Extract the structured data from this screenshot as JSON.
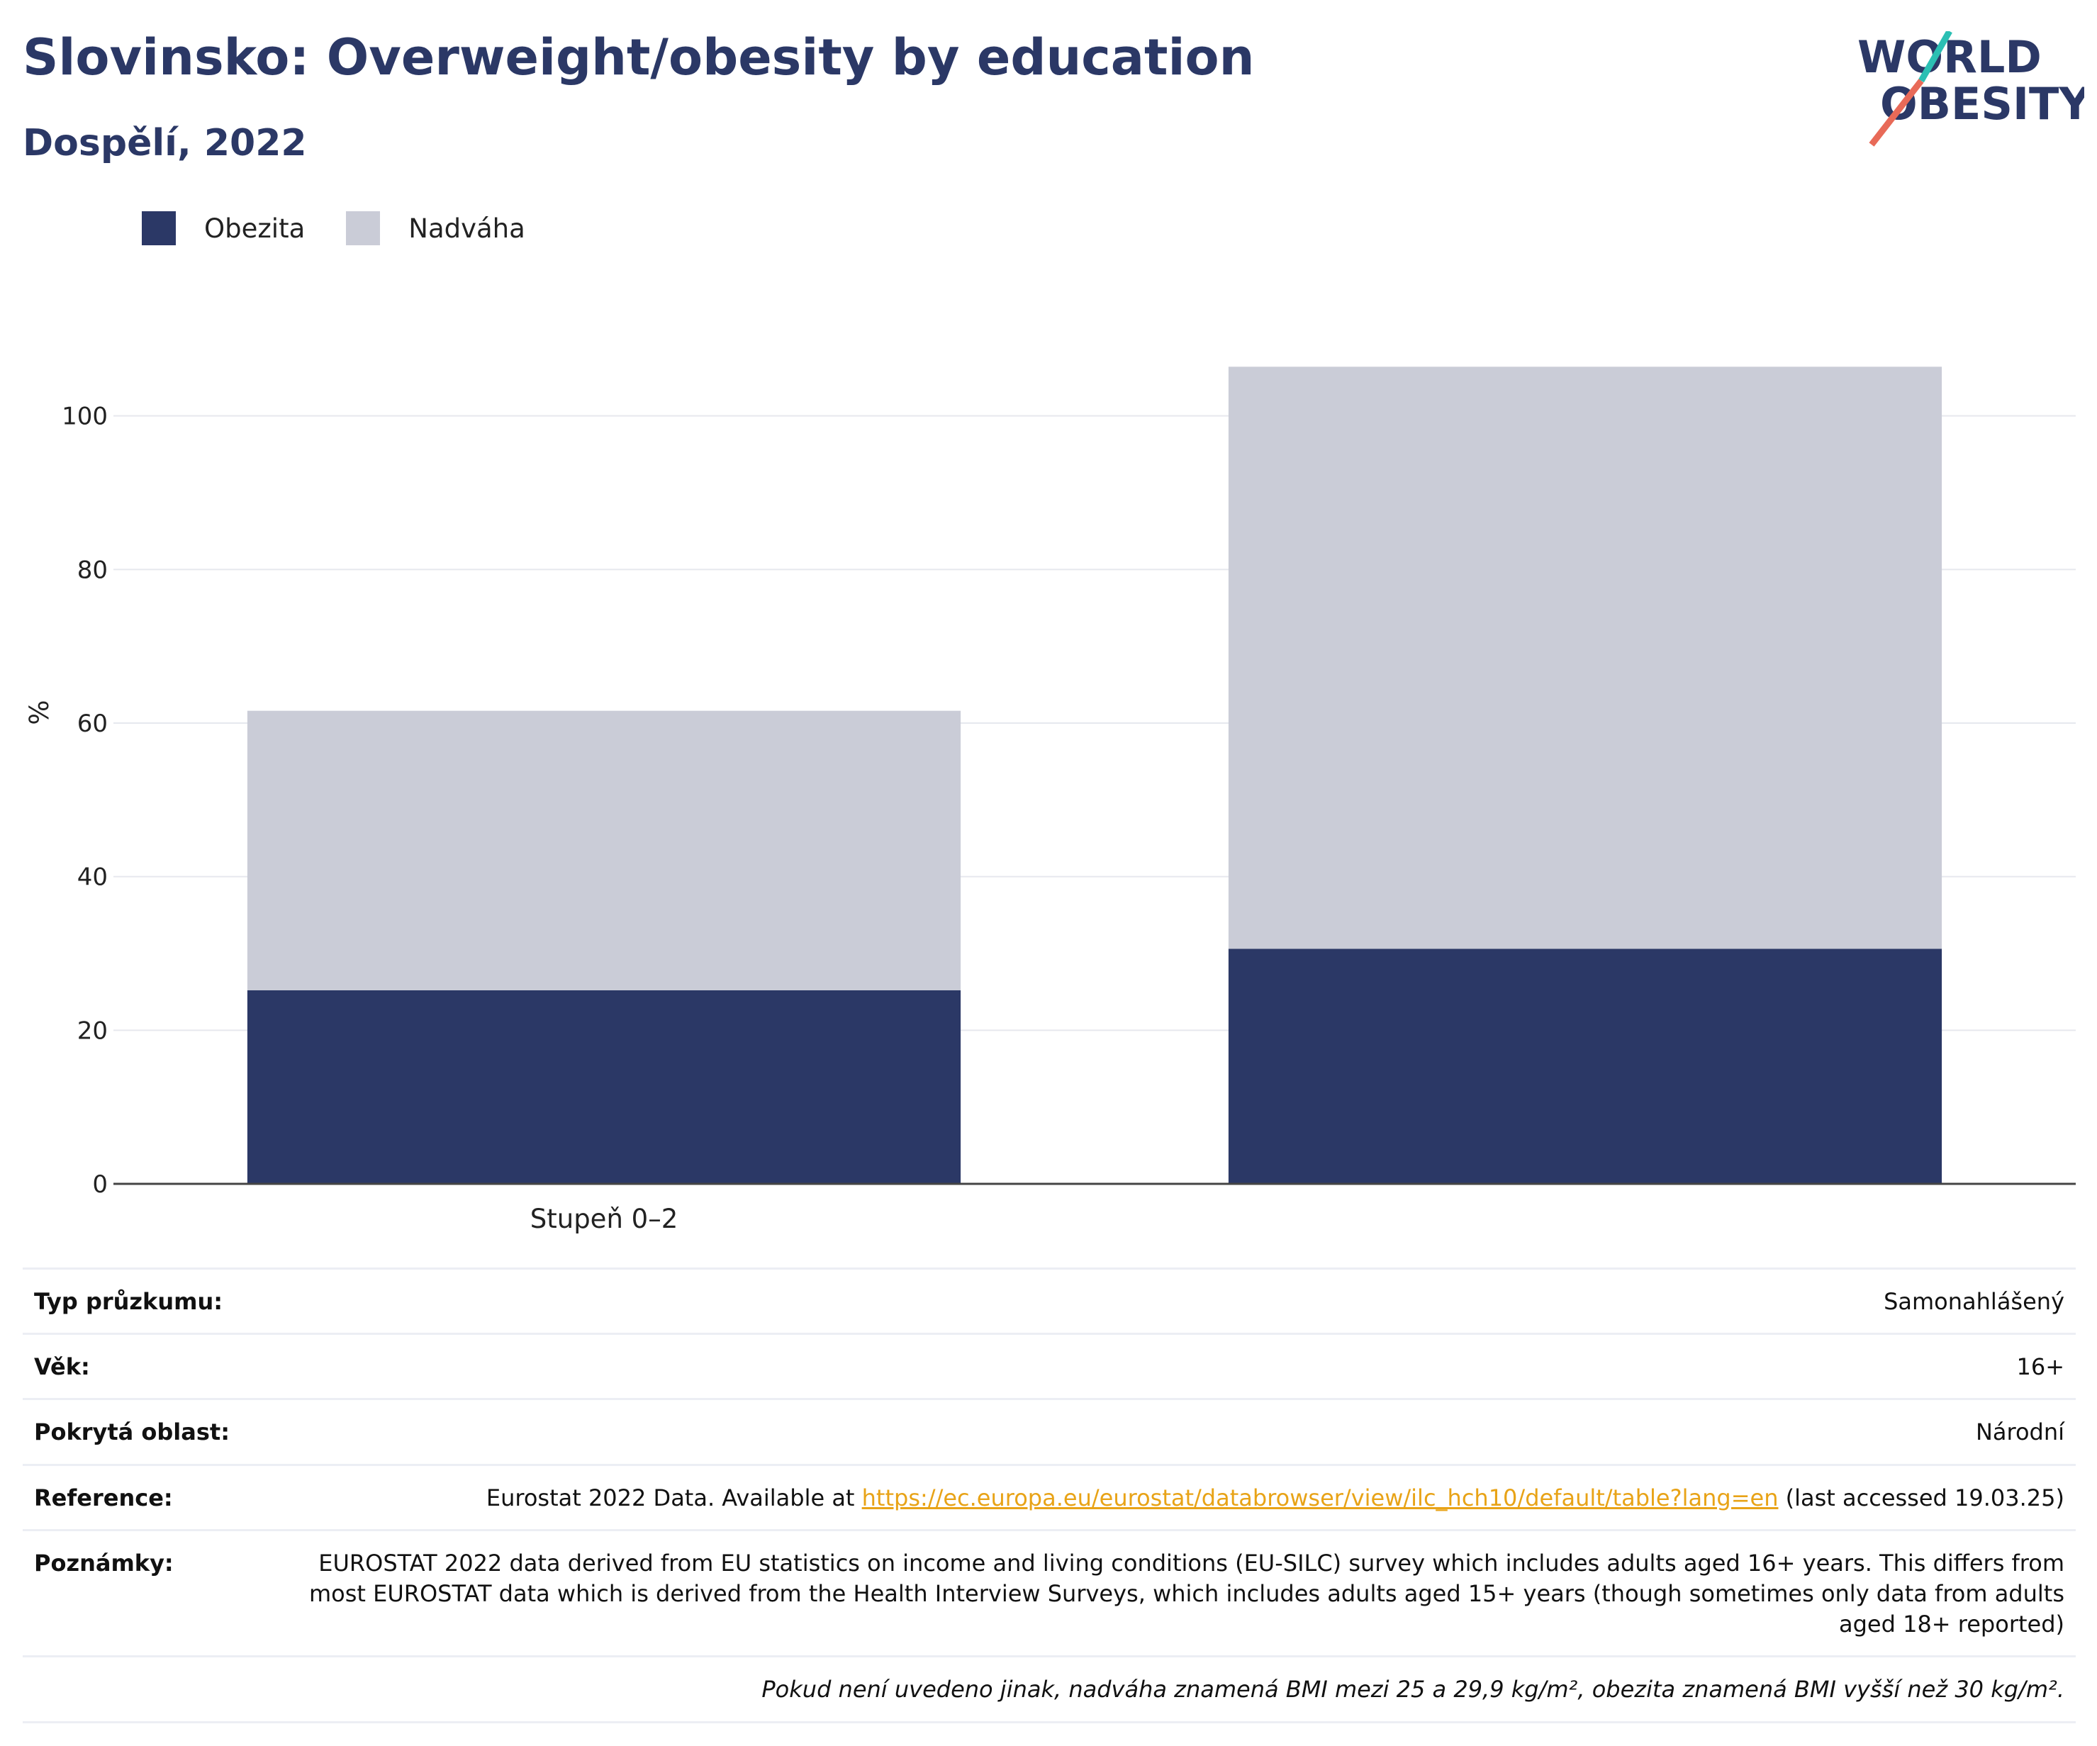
{
  "title": "Slovinsko: Overweight/obesity by education",
  "subtitle": "Dospělí, 2022",
  "logo": {
    "line1": "WORLD",
    "line2": "OBESITY"
  },
  "colors": {
    "obesity": "#2b3866",
    "overweight": "#caccd7",
    "brand": "#2b3866",
    "link": "#e8a317",
    "logo_teal": "#2bbfb3",
    "logo_red": "#e86a58"
  },
  "chart_data": {
    "type": "bar",
    "stacked": true,
    "categories": [
      "Stupeň 0–2",
      ""
    ],
    "series": [
      {
        "name": "Obezita",
        "values": [
          25.2,
          30.6
        ],
        "color": "#2b3866"
      },
      {
        "name": "Nadváha",
        "values": [
          36.4,
          75.8
        ],
        "color": "#caccd7"
      }
    ],
    "ylabel": "%",
    "xlabel": "",
    "ylim": [
      0,
      108
    ],
    "yticks": [
      0,
      20,
      40,
      60,
      80,
      100
    ],
    "grid": true,
    "legend": "top-left"
  },
  "info": {
    "survey_type": {
      "label": "Typ průzkumu:",
      "value": "Samonahlášený"
    },
    "age": {
      "label": "Věk:",
      "value": "16+"
    },
    "area": {
      "label": "Pokrytá oblast:",
      "value": "Národní"
    },
    "reference": {
      "label": "Reference:",
      "prefix": "Eurostat 2022 Data. Available at ",
      "link": "https://ec.europa.eu/eurostat/databrowser/view/ilc_hch10/default/table?lang=en",
      "suffix": " (last accessed 19.03.25)"
    },
    "notes": {
      "label": "Poznámky:",
      "value": "EUROSTAT 2022 data derived from EU statistics on income and living conditions (EU-SILC) survey which includes adults aged 16+ years. This differs from most EUROSTAT data which is derived from the Health Interview Surveys, which includes adults aged 15+ years (though sometimes only data from adults aged 18+ reported)"
    },
    "footnote": "Pokud není uvedeno jinak, nadváha znamená BMI mezi 25 a 29,9 kg/m², obezita znamená BMI vyšší než 30 kg/m²."
  }
}
